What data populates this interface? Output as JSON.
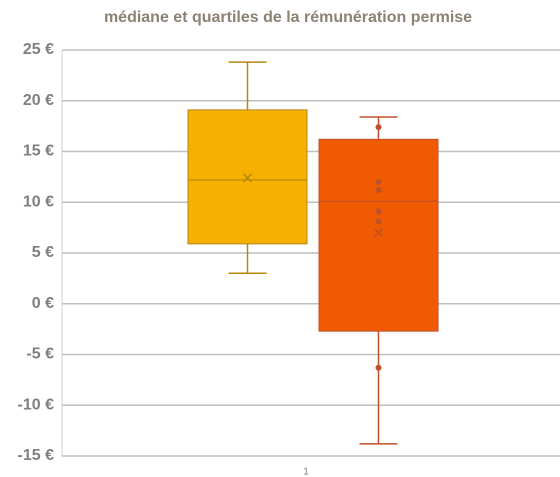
{
  "chart_data": {
    "type": "box",
    "title": "médiane et quartiles de la rémunération permise",
    "categories": [
      "1"
    ],
    "series": [
      {
        "color": "#f5b000",
        "edge": "#b8860b",
        "min": 3.0,
        "q1": 5.9,
        "median": 12.2,
        "q3": 19.1,
        "max": 23.8,
        "mean": 12.4,
        "points": []
      },
      {
        "color": "#f05a00",
        "edge": "#c0502a",
        "min": -13.8,
        "q1": -2.7,
        "median": 10.1,
        "q3": 16.2,
        "max": 18.4,
        "mean": 7.0,
        "points": [
          17.4,
          12.0,
          11.2,
          9.1,
          8.1,
          -6.3
        ]
      }
    ],
    "ylim": [
      -15,
      25
    ],
    "yticks": [
      {
        "value": -15,
        "label": "-15 €"
      },
      {
        "value": -10,
        "label": "-10 €"
      },
      {
        "value": -5,
        "label": "-5 €"
      },
      {
        "value": 0,
        "label": "0 €"
      },
      {
        "value": 5,
        "label": "5 €"
      },
      {
        "value": 10,
        "label": "10 €"
      },
      {
        "value": 15,
        "label": "15 €"
      },
      {
        "value": 20,
        "label": "20 €"
      },
      {
        "value": 25,
        "label": "25 €"
      }
    ],
    "grid": true
  }
}
